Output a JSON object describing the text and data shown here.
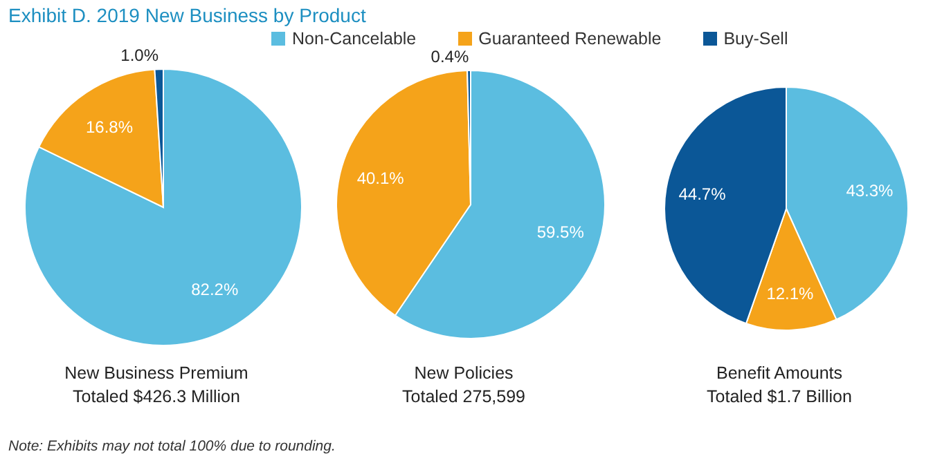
{
  "chart_data": [
    {
      "type": "pie",
      "title": "Exhibit D. 2019 New Business by Product",
      "xlabel": "New Business Premium\nTotaled $426.3 Million",
      "legend": "top",
      "categories": [
        "Non-Cancelable",
        "Guaranteed Renewable",
        "Buy-Sell"
      ],
      "values": [
        82.2,
        16.8,
        1.0
      ],
      "colors": [
        "#5bbde0",
        "#f5a31a",
        "#0b5797"
      ],
      "value_labels": [
        "82.2%",
        "16.8%",
        "1.0%"
      ],
      "annotations": [
        "Note: Exhibits may not total 100% due to rounding."
      ]
    },
    {
      "type": "pie",
      "xlabel": "New Policies\nTotaled 275,599",
      "values": [
        59.5,
        40.1,
        0.4
      ],
      "colors": [
        "#5bbde0",
        "#f5a31a",
        "#0b5797"
      ],
      "value_labels": [
        "59.5%",
        "40.1%",
        "0.4%"
      ]
    },
    {
      "type": "pie",
      "xlabel": "Benefit Amounts\nTotaled $1.7 Billion",
      "values": [
        43.3,
        12.1,
        44.7
      ],
      "colors": [
        "#5bbde0",
        "#f5a31a",
        "#0b5797"
      ],
      "value_labels": [
        "43.3%",
        "12.1%",
        "44.7%"
      ]
    }
  ]
}
